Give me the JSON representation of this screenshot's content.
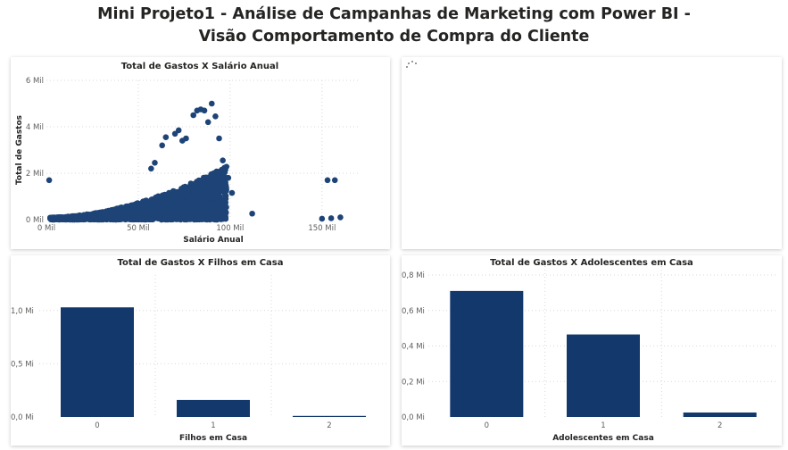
{
  "report": {
    "title_line1": "Mini Projeto1 - Análise de Campanhas de Marketing com Power BI -",
    "title_line2": "Visão Comportamento de Compra do Cliente"
  },
  "colors": {
    "bar": "#12386c",
    "point": "#1e4477"
  },
  "loading_icon": "loading-spinner-icon",
  "chart_data": [
    {
      "type": "scatter",
      "title": "Total de Gastos X Salário Anual",
      "xlabel": "Salário Anual",
      "ylabel": "Total de Gastos",
      "xlim": [
        0,
        170000
      ],
      "ylim": [
        0,
        6000000
      ],
      "xticks": [
        {
          "v": 0,
          "label": "0 Mil"
        },
        {
          "v": 50000,
          "label": "50 Mil"
        },
        {
          "v": 100000,
          "label": "100 Mil"
        },
        {
          "v": 150000,
          "label": "150 Mil"
        }
      ],
      "yticks": [
        {
          "v": 0,
          "label": "0 Mil"
        },
        {
          "v": 2000000,
          "label": "2 Mil"
        },
        {
          "v": 4000000,
          "label": "4 Mil"
        },
        {
          "v": 6000000,
          "label": "6 Mil"
        }
      ],
      "grid": true,
      "cloud": {
        "count": 2200,
        "x_min": 2000,
        "x_max": 98000,
        "seed": 7
      },
      "points": [
        {
          "x": 1500,
          "y": 1700000
        },
        {
          "x": 57000,
          "y": 2200000
        },
        {
          "x": 59000,
          "y": 2450000
        },
        {
          "x": 63000,
          "y": 3200000
        },
        {
          "x": 65000,
          "y": 3550000
        },
        {
          "x": 70000,
          "y": 3700000
        },
        {
          "x": 72000,
          "y": 3850000
        },
        {
          "x": 74000,
          "y": 3400000
        },
        {
          "x": 76000,
          "y": 3500000
        },
        {
          "x": 80000,
          "y": 4500000
        },
        {
          "x": 82000,
          "y": 4700000
        },
        {
          "x": 84000,
          "y": 4750000
        },
        {
          "x": 86000,
          "y": 4700000
        },
        {
          "x": 90000,
          "y": 5000000
        },
        {
          "x": 92000,
          "y": 4450000
        },
        {
          "x": 88000,
          "y": 4200000
        },
        {
          "x": 94000,
          "y": 3500000
        },
        {
          "x": 96000,
          "y": 2550000
        },
        {
          "x": 99000,
          "y": 1800000
        },
        {
          "x": 101000,
          "y": 1150000
        },
        {
          "x": 112000,
          "y": 260000
        },
        {
          "x": 88000,
          "y": 650000
        },
        {
          "x": 153000,
          "y": 1700000
        },
        {
          "x": 157000,
          "y": 1700000
        },
        {
          "x": 150000,
          "y": 40000
        },
        {
          "x": 155000,
          "y": 60000
        },
        {
          "x": 160000,
          "y": 100000
        },
        {
          "x": 7000,
          "y": 50000
        },
        {
          "x": 10000,
          "y": 80000
        }
      ]
    },
    {
      "type": "bar",
      "title": "Total de Gastos X Filhos em Casa",
      "xlabel": "Filhos em Casa",
      "ylabel": "",
      "categories": [
        "0",
        "1",
        "2"
      ],
      "values": [
        1.03,
        0.16,
        0.005
      ],
      "ylim": [
        0,
        1.25
      ],
      "yticks": [
        {
          "v": 0,
          "label": "0,0 Mi"
        },
        {
          "v": 0.5,
          "label": "0,5 Mi"
        },
        {
          "v": 1.0,
          "label": "1,0 Mi"
        }
      ],
      "grid": true
    },
    {
      "type": "bar",
      "title": "Total de Gastos X Adolescentes em Casa",
      "xlabel": "Adolescentes em Casa",
      "ylabel": "",
      "categories": [
        "0",
        "1",
        "2"
      ],
      "values": [
        0.71,
        0.465,
        0.025
      ],
      "ylim": [
        0,
        0.8
      ],
      "yticks": [
        {
          "v": 0,
          "label": "0,0 Mi"
        },
        {
          "v": 0.2,
          "label": "0,2 Mi"
        },
        {
          "v": 0.4,
          "label": "0,4 Mi"
        },
        {
          "v": 0.6,
          "label": "0,6 Mi"
        },
        {
          "v": 0.8,
          "label": "0,8 Mi"
        }
      ],
      "grid": true
    }
  ]
}
